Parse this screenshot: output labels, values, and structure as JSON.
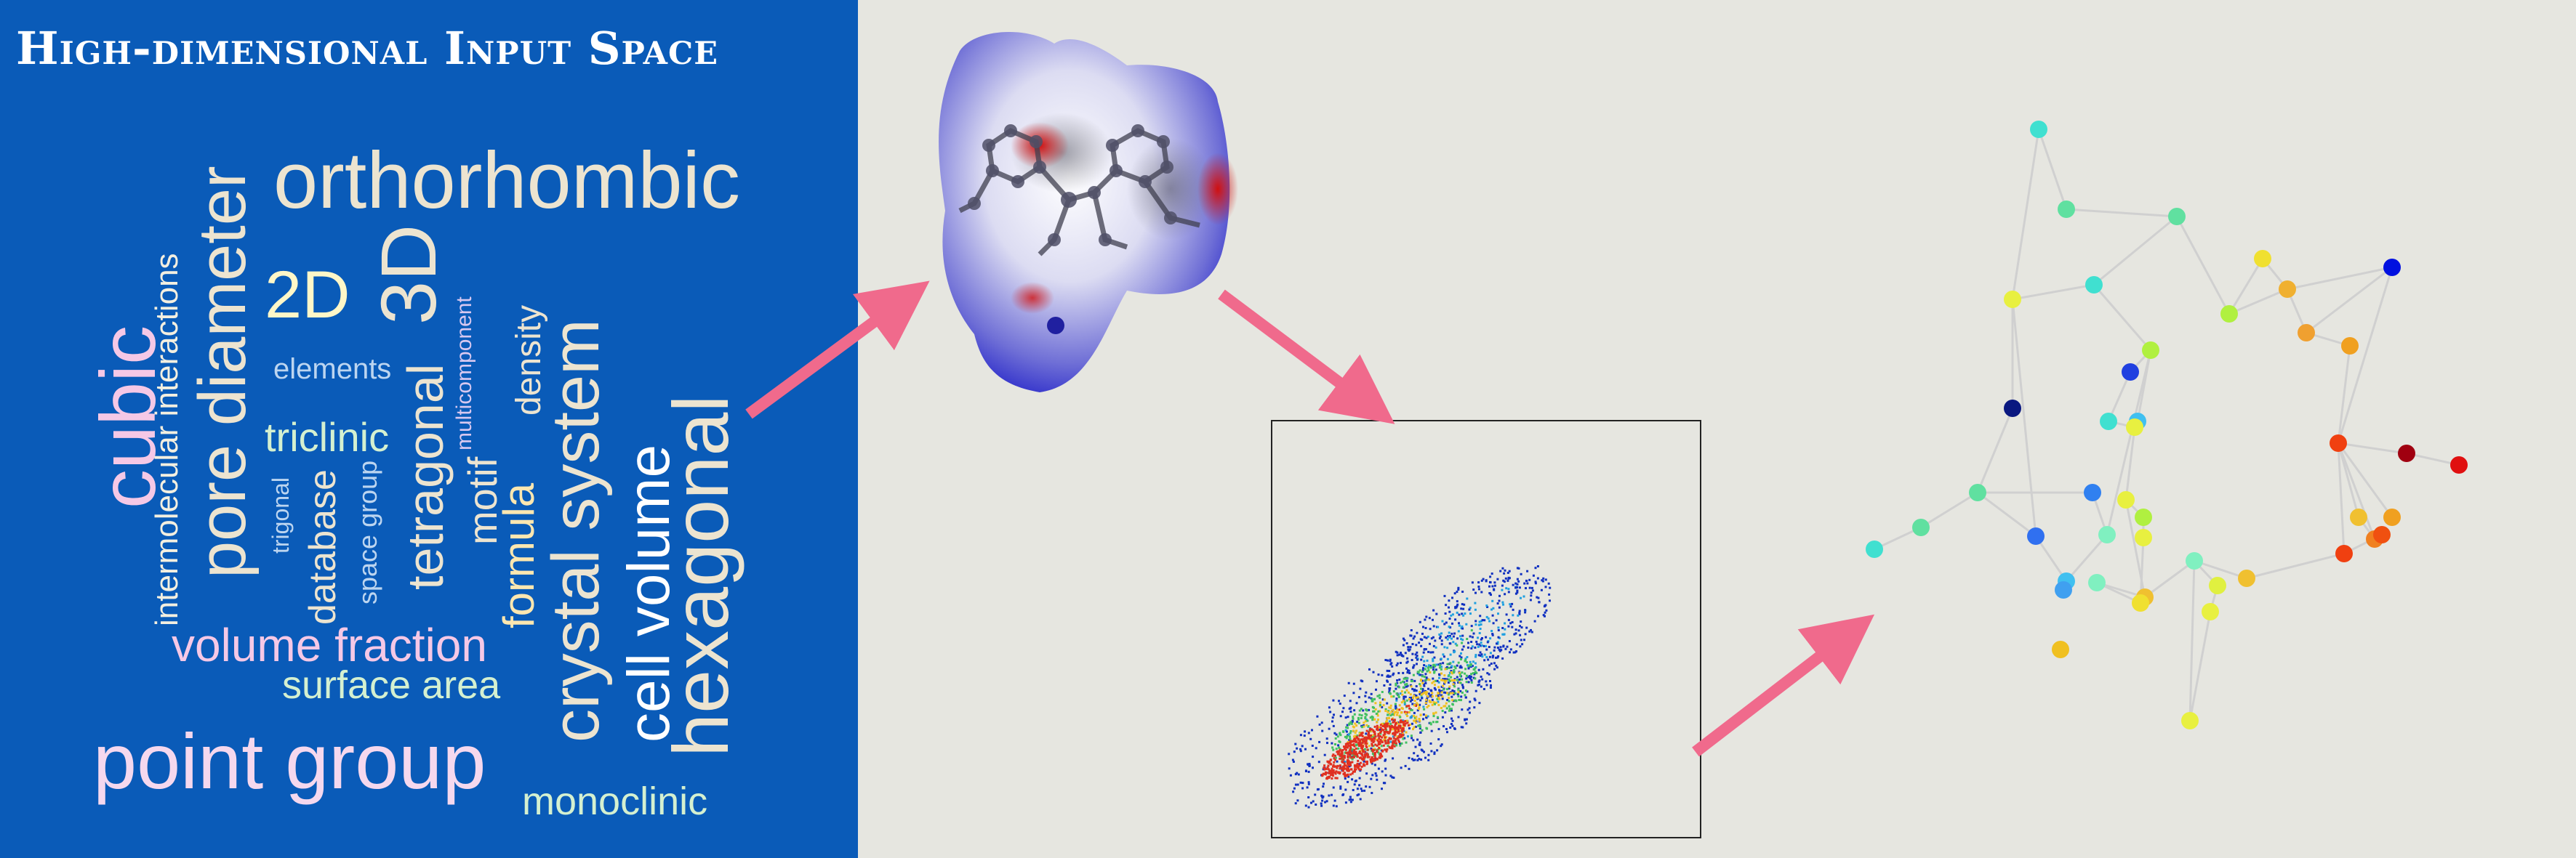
{
  "title": "High-dimensional Input Space",
  "colors": {
    "left_panel": "#0a5bb8",
    "middle_panel": "#e6e6e0",
    "right_panel": "#567789",
    "arrow": "#f06a8c",
    "graph_edge": "#d0d0d0"
  },
  "word_cloud": {
    "cubic": "cubic",
    "intermolecular_interactions": "intermolecular interactions",
    "pore_diameter": "pore diameter",
    "orthorhombic": "orthorhombic",
    "two_d": "2D",
    "three_d": "3D",
    "elements": "elements",
    "triclinic": "triclinic",
    "trigonal": "trigonal",
    "database": "database",
    "space_group": "space group",
    "tetragonal": "tetragonal",
    "multicomponent": "multicomponent",
    "motif": "motif",
    "formula": "formula",
    "density": "density",
    "crystal_system": "crystal system",
    "cell_volume": "cell volume",
    "hexagonal": "hexagonal",
    "volume_fraction": "volume fraction",
    "surface_area": "surface area",
    "point_group": "point group",
    "monoclinic": "monoclinic"
  },
  "icons": {
    "molecule": "hirshfeld-surface-molecule-icon",
    "fingerprint": "fingerprint-plot-icon",
    "graph": "node-graph-icon",
    "arrow": "arrow-icon"
  }
}
